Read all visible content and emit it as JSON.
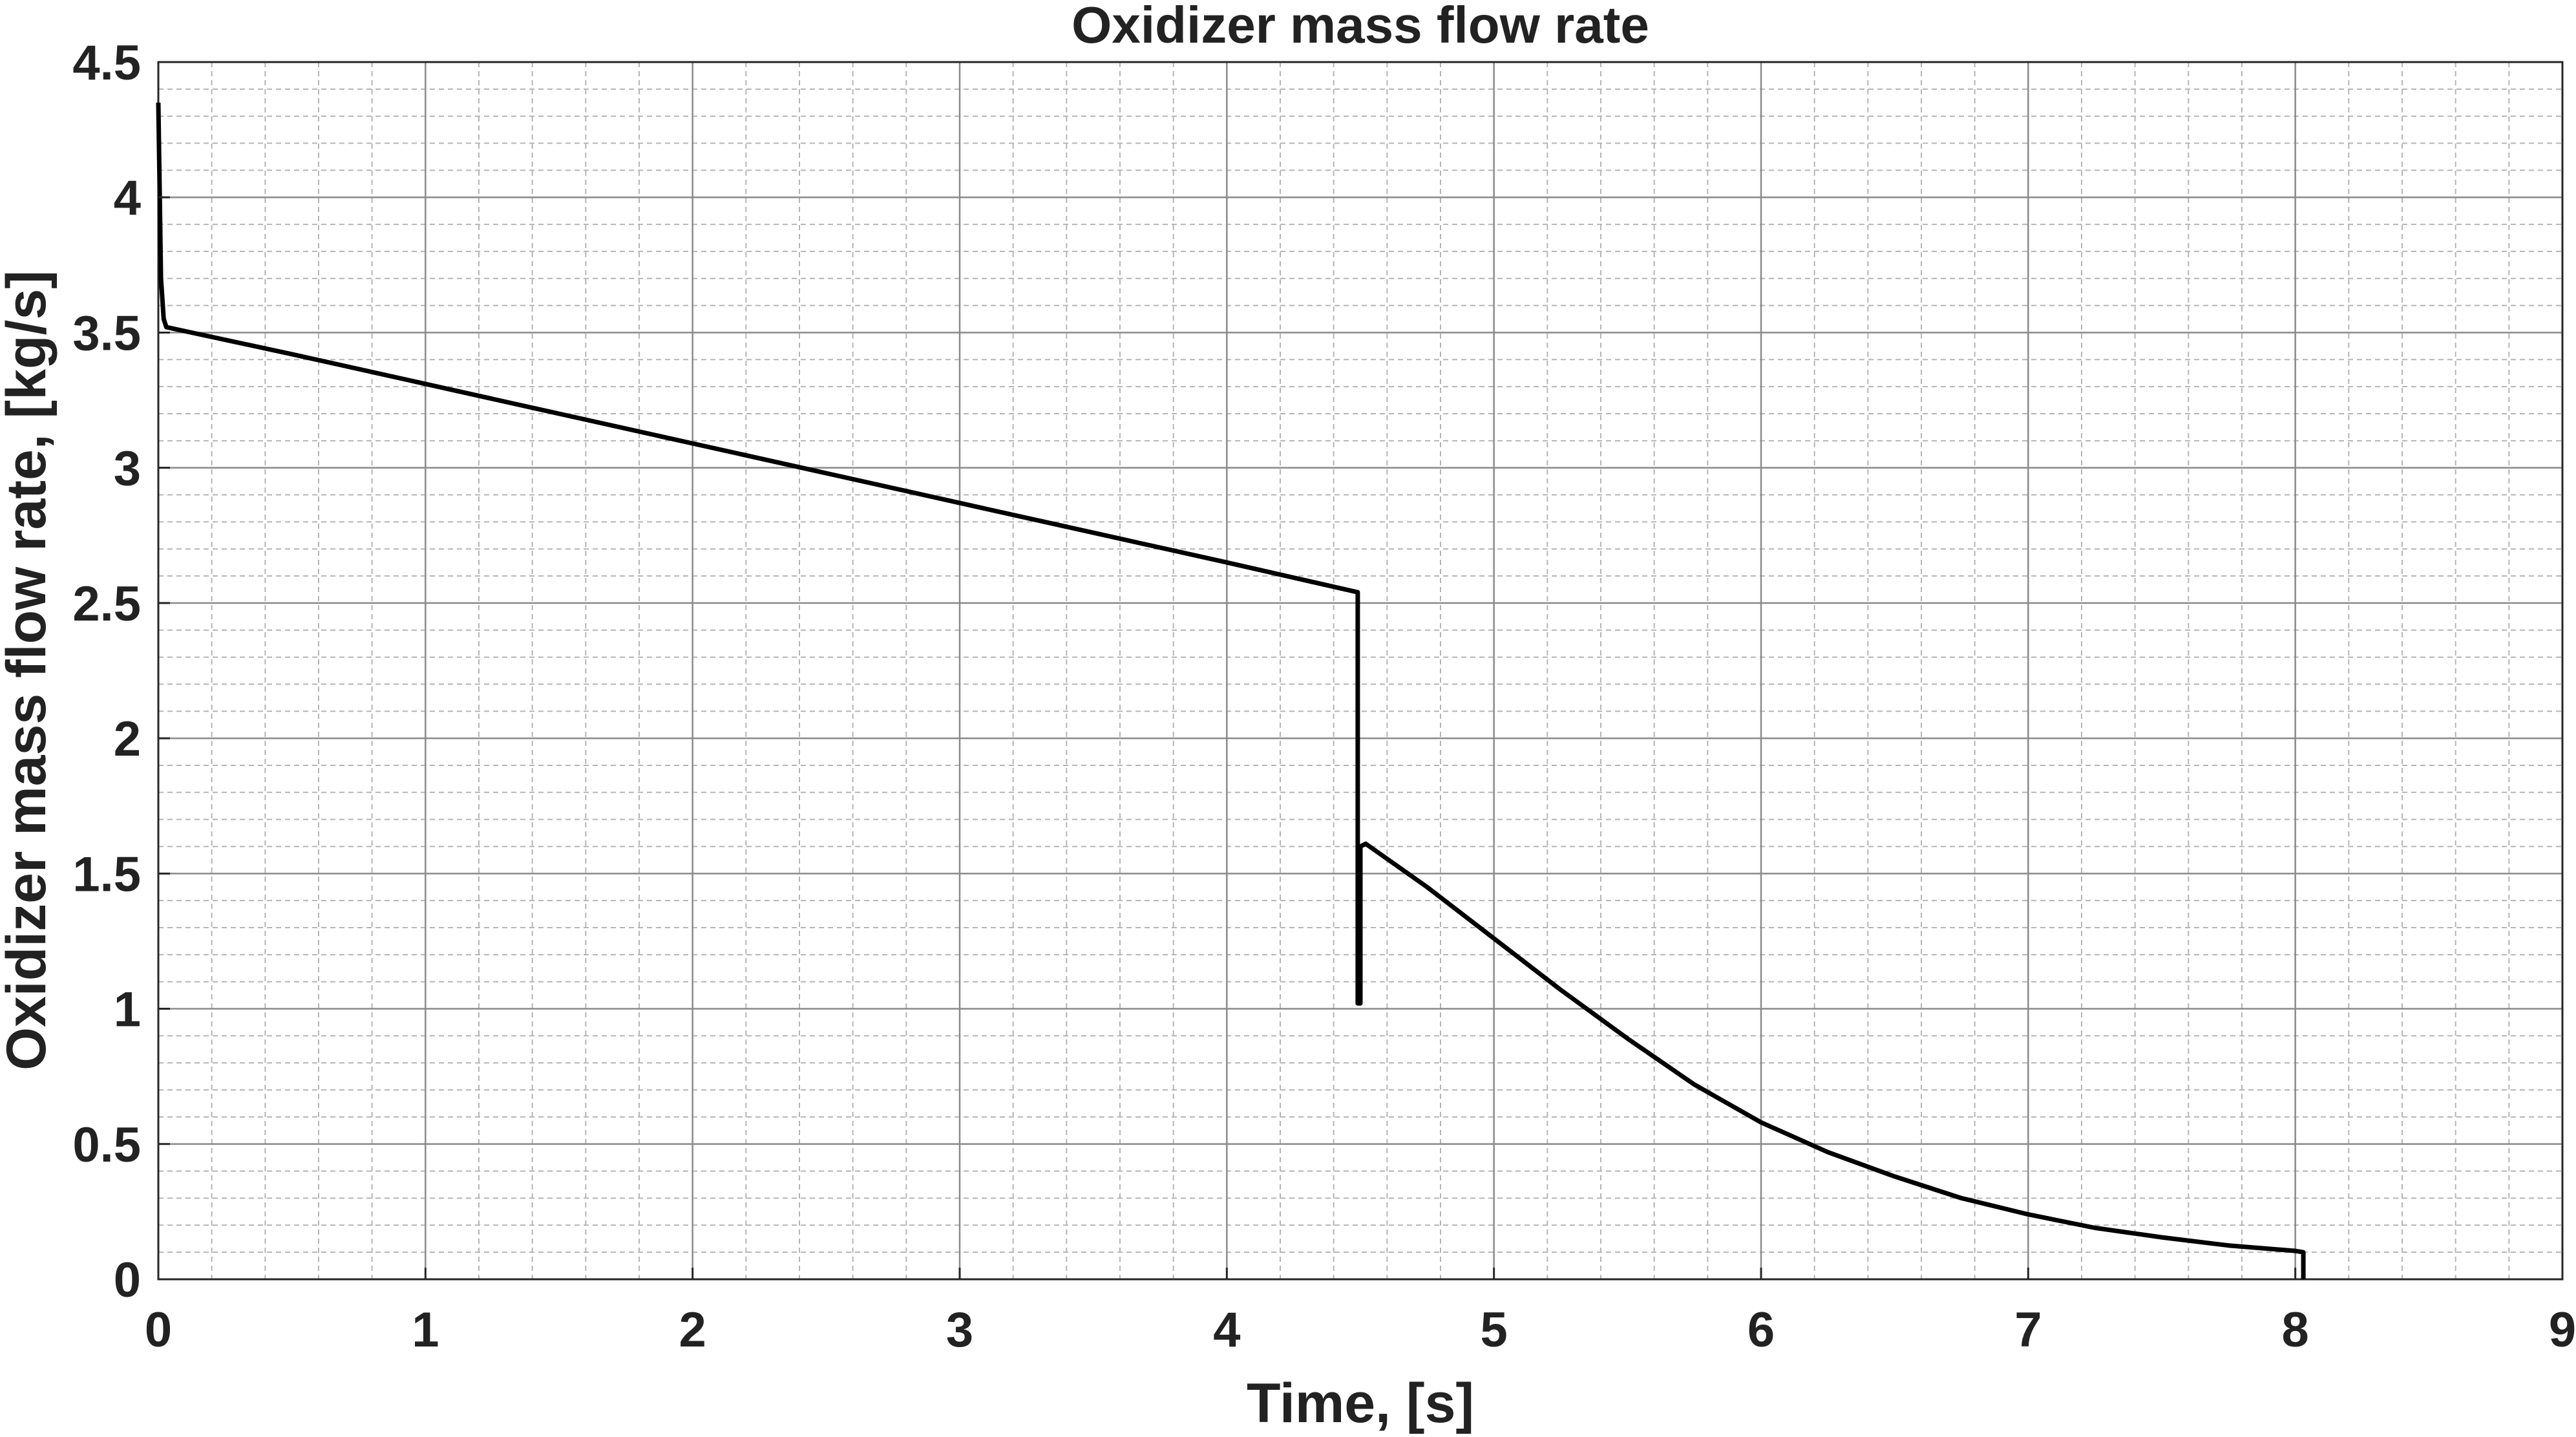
{
  "chart_data": {
    "type": "line",
    "title": "Oxidizer mass flow rate",
    "xlabel": "Time, [s]",
    "ylabel": "Oxidizer mass flow rate, [kg/s]",
    "xlim": [
      0,
      9
    ],
    "ylim": [
      0,
      4.5
    ],
    "xticks": [
      "0",
      "1",
      "2",
      "3",
      "4",
      "5",
      "6",
      "7",
      "8",
      "9"
    ],
    "yticks": [
      "0",
      "0.5",
      "1",
      "1.5",
      "2",
      "2.5",
      "3",
      "3.5",
      "4",
      "4.5"
    ],
    "grid": true,
    "minor_grid": true,
    "legend": "none",
    "line_color": "#000000",
    "series": [
      {
        "x": [
          0.0,
          0.01,
          0.02,
          0.03,
          0.5,
          1.0,
          1.5,
          2.0,
          2.5,
          3.0,
          3.5,
          4.0,
          4.49,
          4.49,
          4.5,
          4.5,
          4.52,
          4.75,
          5.0,
          5.25,
          5.5,
          5.75,
          6.0,
          6.25,
          6.5,
          6.75,
          7.0,
          7.25,
          7.5,
          7.75,
          8.0,
          8.03,
          8.03
        ],
        "y": [
          4.35,
          3.7,
          3.55,
          3.52,
          3.42,
          3.31,
          3.2,
          3.09,
          2.98,
          2.87,
          2.76,
          2.65,
          2.54,
          1.02,
          1.02,
          1.6,
          1.61,
          1.45,
          1.26,
          1.07,
          0.89,
          0.72,
          0.58,
          0.47,
          0.38,
          0.3,
          0.24,
          0.19,
          0.155,
          0.125,
          0.105,
          0.1,
          0.0
        ]
      }
    ]
  }
}
